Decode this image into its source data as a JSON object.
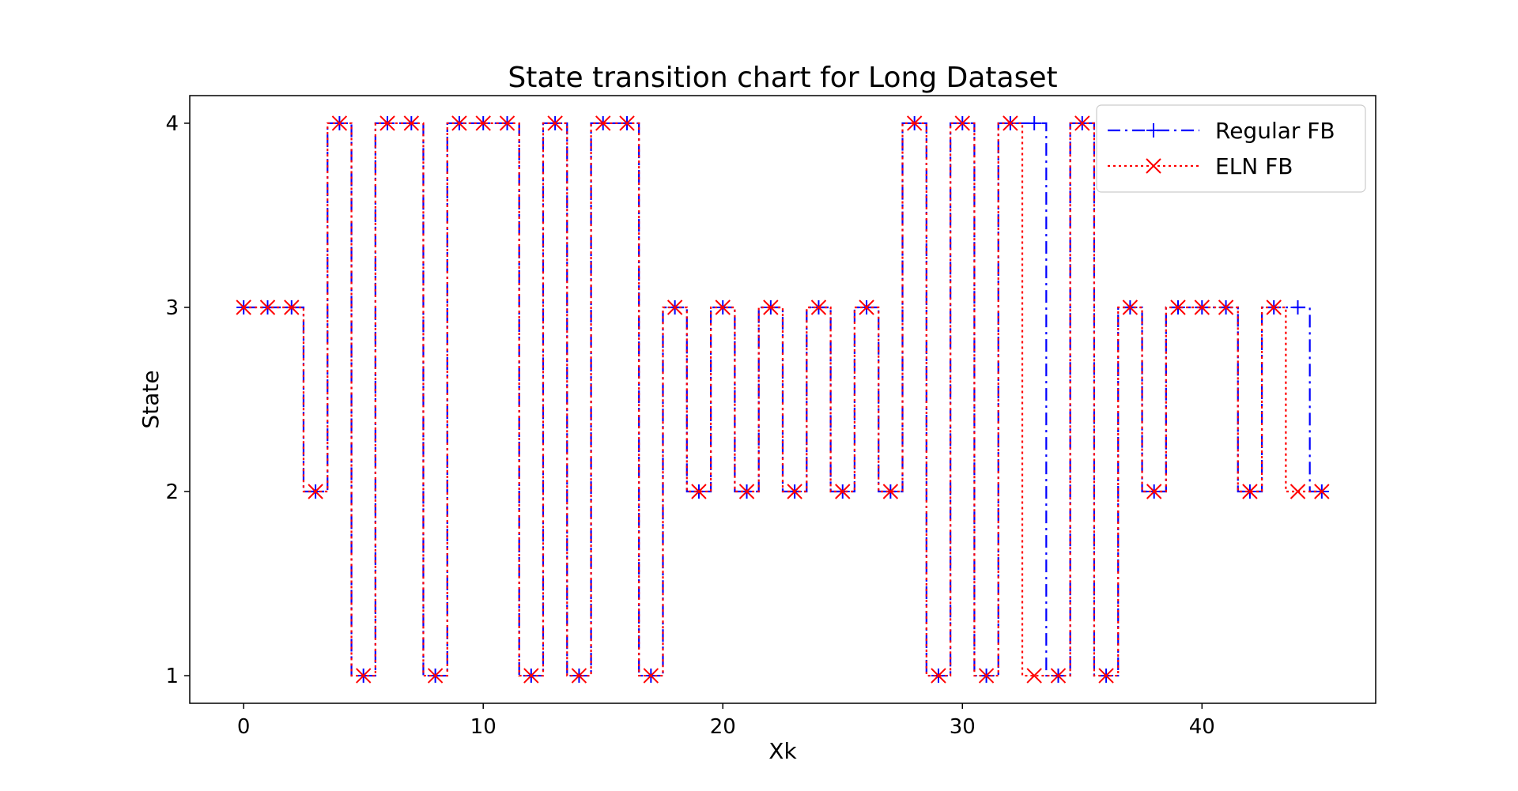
{
  "chart_data": {
    "type": "line",
    "step": "mid",
    "title": "State transition chart for Long Dataset",
    "xlabel": "Xk",
    "ylabel": "State",
    "xlim": [
      -2.25,
      47.25
    ],
    "ylim": [
      0.85,
      4.15
    ],
    "xticks": [
      0,
      10,
      20,
      30,
      40
    ],
    "yticks": [
      1,
      2,
      3,
      4
    ],
    "grid": false,
    "legend_position": "top-right",
    "x": [
      0,
      1,
      2,
      3,
      4,
      5,
      6,
      7,
      8,
      9,
      10,
      11,
      12,
      13,
      14,
      15,
      16,
      17,
      18,
      19,
      20,
      21,
      22,
      23,
      24,
      25,
      26,
      27,
      28,
      29,
      30,
      31,
      32,
      33,
      34,
      35,
      36,
      37,
      38,
      39,
      40,
      41,
      42,
      43,
      44,
      45
    ],
    "series": [
      {
        "name": "Regular FB",
        "color": "#0000ff",
        "linestyle": "dashdot",
        "marker": "plus",
        "values": [
          3,
          3,
          3,
          2,
          4,
          1,
          4,
          4,
          1,
          4,
          4,
          4,
          1,
          4,
          1,
          4,
          4,
          1,
          3,
          2,
          3,
          2,
          3,
          2,
          3,
          2,
          3,
          2,
          4,
          1,
          4,
          1,
          4,
          4,
          1,
          4,
          1,
          3,
          2,
          3,
          3,
          3,
          2,
          3,
          3,
          2
        ]
      },
      {
        "name": "ELN FB",
        "color": "#ff0000",
        "linestyle": "dotted",
        "marker": "x",
        "values": [
          3,
          3,
          3,
          2,
          4,
          1,
          4,
          4,
          1,
          4,
          4,
          4,
          1,
          4,
          1,
          4,
          4,
          1,
          3,
          2,
          3,
          2,
          3,
          2,
          3,
          2,
          3,
          2,
          4,
          1,
          4,
          1,
          4,
          1,
          1,
          4,
          1,
          3,
          2,
          3,
          3,
          3,
          2,
          3,
          2,
          2
        ]
      }
    ]
  }
}
